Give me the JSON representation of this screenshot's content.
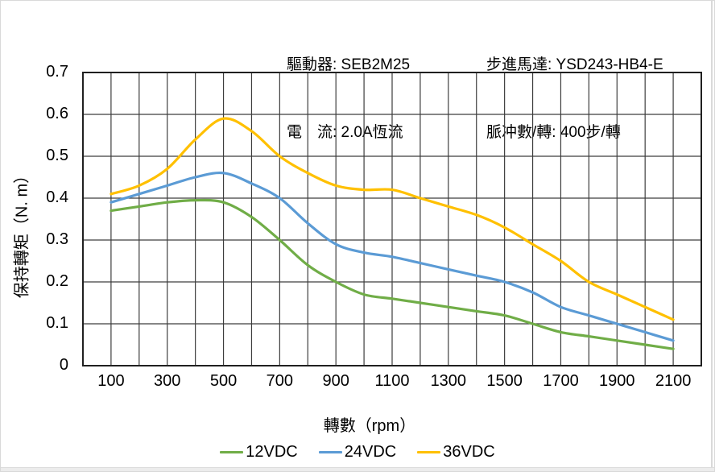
{
  "header": {
    "driver": "驅動器: SEB2M25",
    "current": "電　流: 2.0A恆流",
    "motor": "步進馬達: YSD243-HB4-E",
    "pulses": "脈冲數/轉: 400步/轉"
  },
  "chart_data": {
    "type": "line",
    "xlabel": "轉數（rpm）",
    "ylabel": "保持轉矩（N. m）",
    "xlim": [
      0,
      2200
    ],
    "ylim": [
      0,
      0.7
    ],
    "grid": "on",
    "legend_position": "bottom",
    "x": [
      100,
      200,
      300,
      400,
      500,
      600,
      700,
      800,
      900,
      1000,
      1100,
      1200,
      1300,
      1400,
      1500,
      1600,
      1700,
      1800,
      1900,
      2000,
      2100
    ],
    "x_tick_labels": [
      100,
      300,
      500,
      700,
      900,
      1100,
      1300,
      1500,
      1700,
      1900,
      2100
    ],
    "y_ticks": [
      0,
      0.1,
      0.2,
      0.3,
      0.4,
      0.5,
      0.6,
      0.7
    ],
    "series": [
      {
        "name": "12VDC",
        "color": "#70AD47",
        "values": [
          0.37,
          0.38,
          0.39,
          0.395,
          0.39,
          0.355,
          0.3,
          0.24,
          0.2,
          0.17,
          0.16,
          0.15,
          0.14,
          0.13,
          0.12,
          0.1,
          0.08,
          0.07,
          0.06,
          0.05,
          0.04
        ]
      },
      {
        "name": "24VDC",
        "color": "#5B9BD5",
        "values": [
          0.39,
          0.41,
          0.43,
          0.45,
          0.46,
          0.435,
          0.4,
          0.34,
          0.29,
          0.27,
          0.26,
          0.245,
          0.23,
          0.215,
          0.2,
          0.175,
          0.14,
          0.12,
          0.1,
          0.08,
          0.06
        ]
      },
      {
        "name": "36VDC",
        "color": "#FFC000",
        "values": [
          0.41,
          0.43,
          0.47,
          0.54,
          0.59,
          0.56,
          0.5,
          0.46,
          0.43,
          0.42,
          0.42,
          0.4,
          0.38,
          0.36,
          0.33,
          0.29,
          0.25,
          0.2,
          0.17,
          0.14,
          0.11
        ]
      }
    ],
    "colors": {
      "grid": "#3d3d3d",
      "border": "#202020",
      "text": "#000000"
    }
  }
}
